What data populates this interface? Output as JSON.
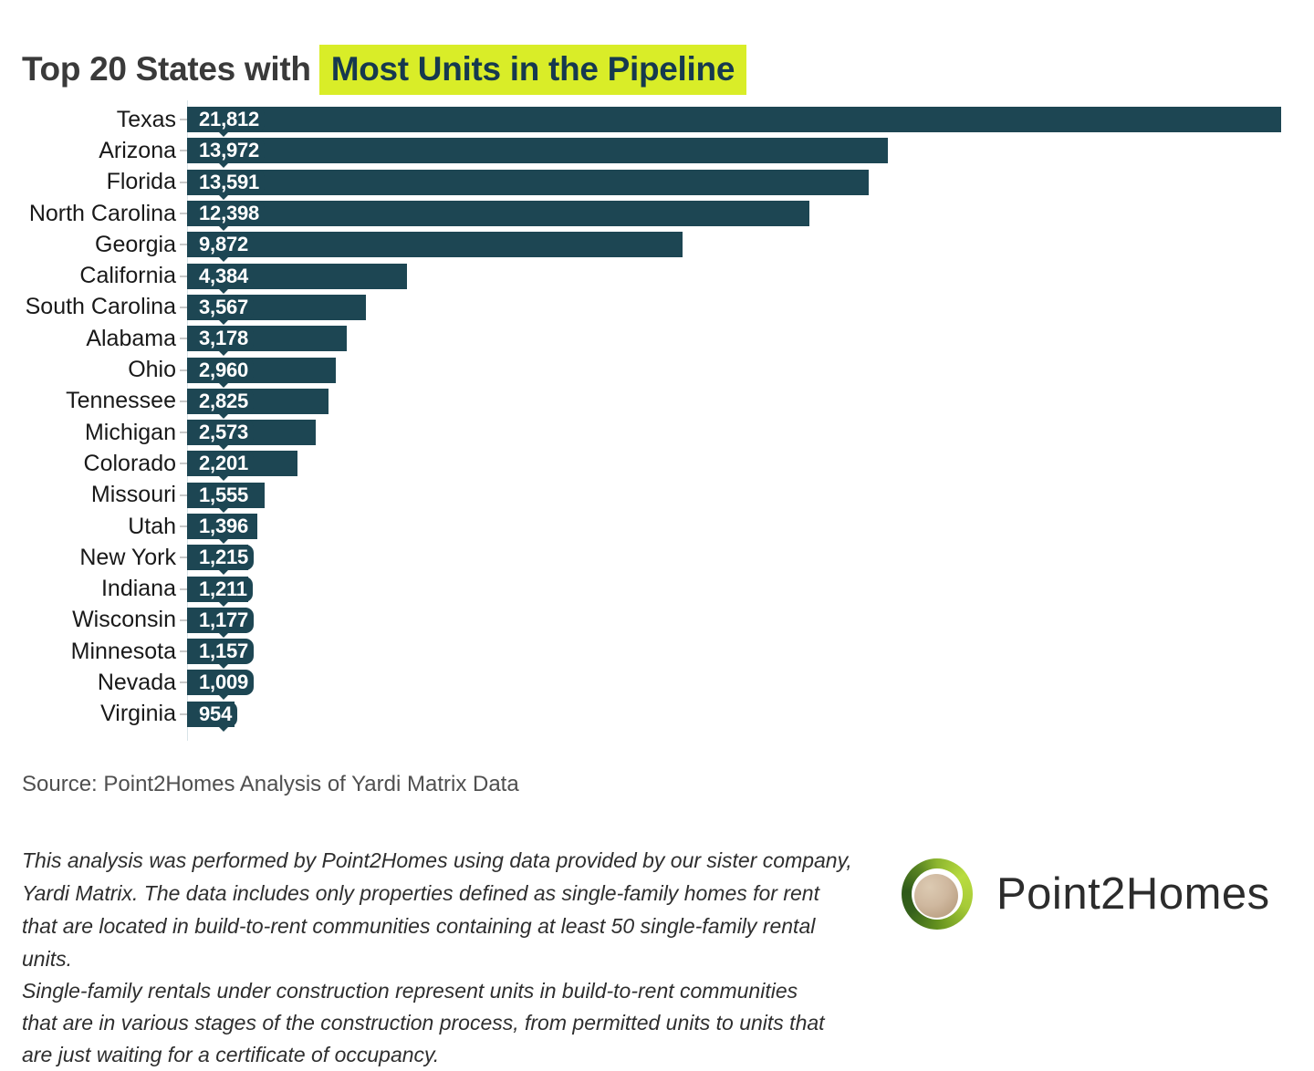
{
  "title": {
    "prefix": "Top 20 States with",
    "highlight": "Most Units in the Pipeline"
  },
  "chart_data": {
    "type": "bar",
    "orientation": "horizontal",
    "title": "Top 20 States with Most Units in the Pipeline",
    "categories": [
      "Texas",
      "Arizona",
      "Florida",
      "North Carolina",
      "Georgia",
      "California",
      "South Carolina",
      "Alabama",
      "Ohio",
      "Tennessee",
      "Michigan",
      "Colorado",
      "Missouri",
      "Utah",
      "New York",
      "Indiana",
      "Wisconsin",
      "Minnesota",
      "Nevada",
      "Virginia"
    ],
    "values": [
      21812,
      13972,
      13591,
      12398,
      9872,
      4384,
      3567,
      3178,
      2960,
      2825,
      2573,
      2201,
      1555,
      1396,
      1215,
      1211,
      1177,
      1157,
      1009,
      954
    ],
    "value_labels": [
      "21,812",
      "13,972",
      "13,591",
      "12,398",
      "9,872",
      "4,384",
      "3,567",
      "3,178",
      "2,960",
      "2,825",
      "2,573",
      "2,201",
      "1,555",
      "1,396",
      "1,215",
      "1,211",
      "1,177",
      "1,157",
      "1,009",
      "954"
    ],
    "xlabel": "",
    "ylabel": "",
    "xlim": [
      0,
      21812
    ],
    "grid": false,
    "legend": false,
    "value_labels_position": "inside-left"
  },
  "source": "Source: Point2Homes Analysis of Yardi Matrix Data",
  "notes": {
    "paragraph1": "This analysis was performed by Point2Homes using data provided by our sister company,\nYardi Matrix. The data includes only properties defined as single-family homes for rent\nthat are located in build-to-rent communities containing at least 50 single-family rental\nunits.",
    "paragraph2": "Single-family rentals under construction represent units in build-to-rent communities\nthat are in various stages of the construction process, from permitted units to units that\nare just waiting for a certificate of occupancy."
  },
  "logo": {
    "text": "Point2Homes"
  },
  "colors": {
    "bar": "#1d4653",
    "value_label": "#ffffff",
    "highlight_bg": "#d9ed28",
    "highlight_text": "#16394f",
    "title": "#3a3a3a",
    "category_label": "#191919",
    "source": "#4f4f4f",
    "notes": "#2e2e2e"
  }
}
